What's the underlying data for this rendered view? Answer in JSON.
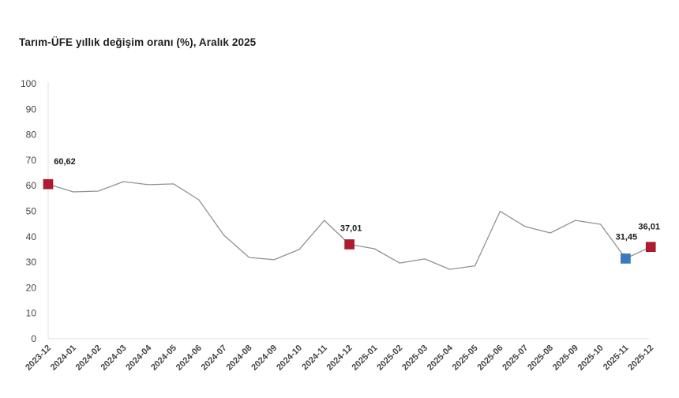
{
  "chart_data": {
    "type": "line",
    "title": "Tarım-ÜFE yıllık değişim oranı (%), Aralık 2025",
    "xlabel": "",
    "ylabel": "",
    "ylim": [
      0,
      100
    ],
    "yticks": [
      0,
      10,
      20,
      30,
      40,
      50,
      60,
      70,
      80,
      90,
      100
    ],
    "grid": false,
    "legend": null,
    "categories": [
      "2023-12",
      "2024-01",
      "2024-02",
      "2024-03",
      "2024-04",
      "2024-05",
      "2024-06",
      "2024-07",
      "2024-08",
      "2024-09",
      "2024-10",
      "2024-11",
      "2024-12",
      "2025-01",
      "2025-02",
      "2025-03",
      "2025-04",
      "2025-05",
      "2025-06",
      "2025-07",
      "2025-08",
      "2025-09",
      "2025-10",
      "2025-11",
      "2025-12"
    ],
    "series": [
      {
        "name": "Tarım-ÜFE yıllık değişim oranı (%)",
        "color": "#8a9399",
        "values": [
          60.62,
          57.6,
          57.9,
          61.6,
          60.4,
          60.7,
          54.5,
          40.6,
          31.9,
          31.0,
          35.0,
          46.4,
          37.01,
          35.3,
          29.7,
          31.3,
          27.2,
          28.6,
          50.0,
          44.0,
          41.5,
          46.4,
          44.9,
          31.45,
          36.01
        ]
      }
    ],
    "highlighted_points": [
      {
        "index": 0,
        "label": "60,62",
        "color": "#b01c2e"
      },
      {
        "index": 12,
        "label": "37,01",
        "color": "#b01c2e"
      },
      {
        "index": 23,
        "label": "31,45",
        "color": "#3a7bbf"
      },
      {
        "index": 24,
        "label": "36,01",
        "color": "#b01c2e"
      }
    ]
  }
}
